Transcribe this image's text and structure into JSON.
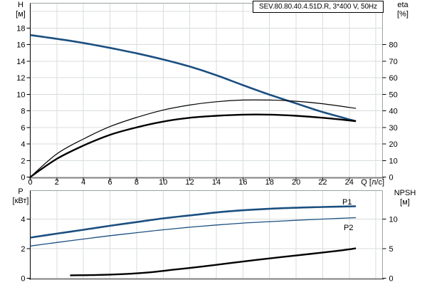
{
  "title": "SEV.80.80.40.4.51D.R, 3*400 V, 50Hz",
  "colors": {
    "curve_blue": "#1b4f80",
    "curve_black": "#000000",
    "grid": "#d8dcdc",
    "frame": "#9aa2a2",
    "axis_gray": "#808080",
    "text": "#000000"
  },
  "chart_data": [
    {
      "id": "top",
      "type": "line",
      "title": "SEV.80.80.40.4.51D.R, 3*400 V, 50Hz",
      "xlabel": "Q [л/с]",
      "xlim": [
        0,
        26.5
      ],
      "x_gridlines": [
        2,
        4,
        6,
        8,
        10,
        12,
        14,
        16,
        18,
        20,
        22,
        24,
        26
      ],
      "x_ticks": [
        0,
        2,
        4,
        6,
        8,
        10,
        12,
        14,
        16,
        18,
        20,
        22,
        24
      ],
      "left_axis": {
        "label": "H",
        "unit": "[м]",
        "lim": [
          0,
          21
        ],
        "gridlines": [
          2,
          4,
          6,
          8,
          10,
          12,
          14,
          16,
          18,
          20
        ],
        "ticks": [
          0,
          2,
          4,
          6,
          8,
          10,
          12,
          14,
          16,
          18
        ]
      },
      "right_axis": {
        "label": "eta",
        "unit": "[%]",
        "lim": [
          0,
          105
        ],
        "ticks": [
          0,
          10,
          20,
          30,
          40,
          50,
          60,
          70,
          80
        ]
      },
      "grid": true,
      "series": [
        {
          "id": "h-curve",
          "name": "H",
          "axis": "left",
          "color": "#1b4f80",
          "width": 2.6,
          "points": [
            [
              0,
              17.15
            ],
            [
              2,
              16.7
            ],
            [
              4,
              16.2
            ],
            [
              6,
              15.6
            ],
            [
              8,
              14.95
            ],
            [
              10,
              14.2
            ],
            [
              12,
              13.35
            ],
            [
              14,
              12.3
            ],
            [
              16,
              11.1
            ],
            [
              18,
              9.95
            ],
            [
              20,
              8.9
            ],
            [
              22,
              7.85
            ],
            [
              24.5,
              6.75
            ]
          ]
        },
        {
          "id": "eta-pump-curve",
          "name": "eta pump",
          "axis": "right",
          "color": "#000000",
          "width": 1.2,
          "points": [
            [
              0,
              0
            ],
            [
              2,
              14
            ],
            [
              4,
              23
            ],
            [
              6,
              30.5
            ],
            [
              8,
              36
            ],
            [
              10,
              40.5
            ],
            [
              12,
              43.5
            ],
            [
              14,
              45.5
            ],
            [
              16,
              46.5
            ],
            [
              18,
              46.5
            ],
            [
              20,
              45.8
            ],
            [
              22,
              44.3
            ],
            [
              24.5,
              41.5
            ]
          ]
        },
        {
          "id": "eta-total-curve",
          "name": "eta pump+motor",
          "axis": "right",
          "color": "#000000",
          "width": 2.4,
          "points": [
            [
              0,
              0
            ],
            [
              2,
              11
            ],
            [
              4,
              19
            ],
            [
              6,
              25.5
            ],
            [
              8,
              30
            ],
            [
              10,
              33.5
            ],
            [
              12,
              35.8
            ],
            [
              14,
              37
            ],
            [
              16,
              37.7
            ],
            [
              18,
              37.7
            ],
            [
              20,
              37
            ],
            [
              22,
              35.8
            ],
            [
              24.5,
              33.8
            ]
          ]
        }
      ],
      "annotations": []
    },
    {
      "id": "bottom",
      "type": "line",
      "title": "",
      "xlabel": "",
      "xlim": [
        0,
        26.5
      ],
      "x_gridlines": [
        2,
        4,
        6,
        8,
        10,
        12,
        14,
        16,
        18,
        20,
        22,
        24,
        26
      ],
      "x_ticks": [],
      "left_axis": {
        "label": "P",
        "unit": "[кВт]",
        "lim": [
          0,
          5.93
        ],
        "gridlines": [
          2,
          4
        ],
        "ticks": [
          0,
          2,
          4
        ]
      },
      "right_axis": {
        "label": "NPSH",
        "unit": "[м]",
        "lim": [
          0,
          14.82
        ],
        "ticks": [
          0,
          5,
          10
        ]
      },
      "grid": true,
      "series": [
        {
          "id": "p1-curve",
          "name": "P1",
          "axis": "left",
          "color": "#1b4f80",
          "width": 2.6,
          "points": [
            [
              0,
              2.75
            ],
            [
              2,
              3.02
            ],
            [
              4,
              3.28
            ],
            [
              6,
              3.55
            ],
            [
              8,
              3.8
            ],
            [
              10,
              4.05
            ],
            [
              12,
              4.25
            ],
            [
              14,
              4.45
            ],
            [
              16,
              4.6
            ],
            [
              18,
              4.7
            ],
            [
              20,
              4.77
            ],
            [
              22,
              4.82
            ],
            [
              24.5,
              4.87
            ]
          ]
        },
        {
          "id": "p2-curve",
          "name": "P2",
          "axis": "left",
          "color": "#1b4f80",
          "width": 1.3,
          "points": [
            [
              0,
              2.18
            ],
            [
              2,
              2.42
            ],
            [
              4,
              2.65
            ],
            [
              6,
              2.88
            ],
            [
              8,
              3.08
            ],
            [
              10,
              3.28
            ],
            [
              12,
              3.45
            ],
            [
              14,
              3.6
            ],
            [
              16,
              3.73
            ],
            [
              18,
              3.83
            ],
            [
              20,
              3.92
            ],
            [
              22,
              4.0
            ],
            [
              24.5,
              4.1
            ]
          ]
        },
        {
          "id": "npsh-curve",
          "name": "NPSH",
          "axis": "right",
          "color": "#000000",
          "width": 2.4,
          "points": [
            [
              3,
              0.5
            ],
            [
              5,
              0.55
            ],
            [
              7,
              0.7
            ],
            [
              9,
              1.0
            ],
            [
              11,
              1.5
            ],
            [
              13,
              2.0
            ],
            [
              15,
              2.55
            ],
            [
              17,
              3.1
            ],
            [
              19,
              3.6
            ],
            [
              21,
              4.1
            ],
            [
              23,
              4.6
            ],
            [
              24.5,
              5.05
            ]
          ]
        }
      ],
      "annotations": [
        {
          "text": "P1",
          "x": 481,
          "y": 287,
          "color": "#1b4f80"
        },
        {
          "text": "P2",
          "x": 483,
          "y": 323,
          "color": "#1b4f80"
        }
      ]
    }
  ]
}
